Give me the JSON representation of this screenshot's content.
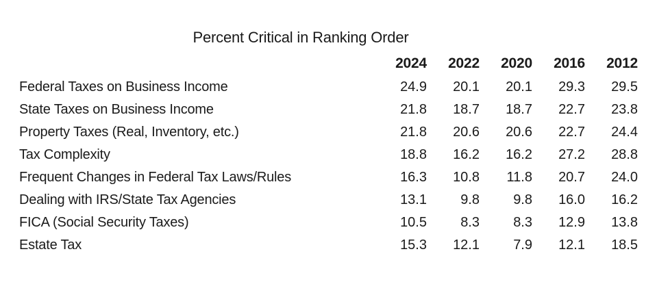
{
  "title": "Percent Critical in Ranking Order",
  "colors": {
    "background": "#ffffff",
    "text": "#1a1a1a"
  },
  "table": {
    "columns": [
      "2024",
      "2022",
      "2020",
      "2016",
      "2012"
    ],
    "rows": [
      {
        "label": "Federal Taxes on Business Income",
        "values": [
          "24.9",
          "20.1",
          "20.1",
          "29.3",
          "29.5"
        ]
      },
      {
        "label": "State Taxes on Business Income",
        "values": [
          "21.8",
          "18.7",
          "18.7",
          "22.7",
          "23.8"
        ]
      },
      {
        "label": "Property Taxes (Real, Inventory, etc.)",
        "values": [
          "21.8",
          "20.6",
          "20.6",
          "22.7",
          "24.4"
        ]
      },
      {
        "label": "Tax Complexity",
        "values": [
          "18.8",
          "16.2",
          "16.2",
          "27.2",
          "28.8"
        ]
      },
      {
        "label": "Frequent Changes in Federal Tax Laws/Rules",
        "values": [
          "16.3",
          "10.8",
          "11.8",
          "20.7",
          "24.0"
        ]
      },
      {
        "label": "Dealing with IRS/State Tax Agencies",
        "values": [
          "13.1",
          "9.8",
          "9.8",
          "16.0",
          "16.2"
        ]
      },
      {
        "label": "FICA (Social Security Taxes)",
        "values": [
          "10.5",
          "8.3",
          "8.3",
          "12.9",
          "13.8"
        ]
      },
      {
        "label": "Estate Tax",
        "values": [
          "15.3",
          "12.1",
          "7.9",
          "12.1",
          "18.5"
        ]
      }
    ]
  },
  "chart_data": {
    "type": "table",
    "title": "Percent Critical in Ranking Order",
    "categories": [
      "2024",
      "2022",
      "2020",
      "2016",
      "2012"
    ],
    "series": [
      {
        "name": "Federal Taxes on Business Income",
        "values": [
          24.9,
          20.1,
          20.1,
          29.3,
          29.5
        ]
      },
      {
        "name": "State Taxes on Business Income",
        "values": [
          21.8,
          18.7,
          18.7,
          22.7,
          23.8
        ]
      },
      {
        "name": "Property Taxes (Real, Inventory, etc.)",
        "values": [
          21.8,
          20.6,
          20.6,
          22.7,
          24.4
        ]
      },
      {
        "name": "Tax Complexity",
        "values": [
          18.8,
          16.2,
          16.2,
          27.2,
          28.8
        ]
      },
      {
        "name": "Frequent Changes in Federal Tax Laws/Rules",
        "values": [
          16.3,
          10.8,
          11.8,
          20.7,
          24.0
        ]
      },
      {
        "name": "Dealing with IRS/State Tax Agencies",
        "values": [
          13.1,
          9.8,
          9.8,
          16.0,
          16.2
        ]
      },
      {
        "name": "FICA (Social Security Taxes)",
        "values": [
          10.5,
          8.3,
          8.3,
          12.9,
          13.8
        ]
      },
      {
        "name": "Estate Tax",
        "values": [
          15.3,
          12.1,
          7.9,
          12.1,
          18.5
        ]
      }
    ],
    "values_unit": "percent",
    "grid": false,
    "legend": false
  }
}
